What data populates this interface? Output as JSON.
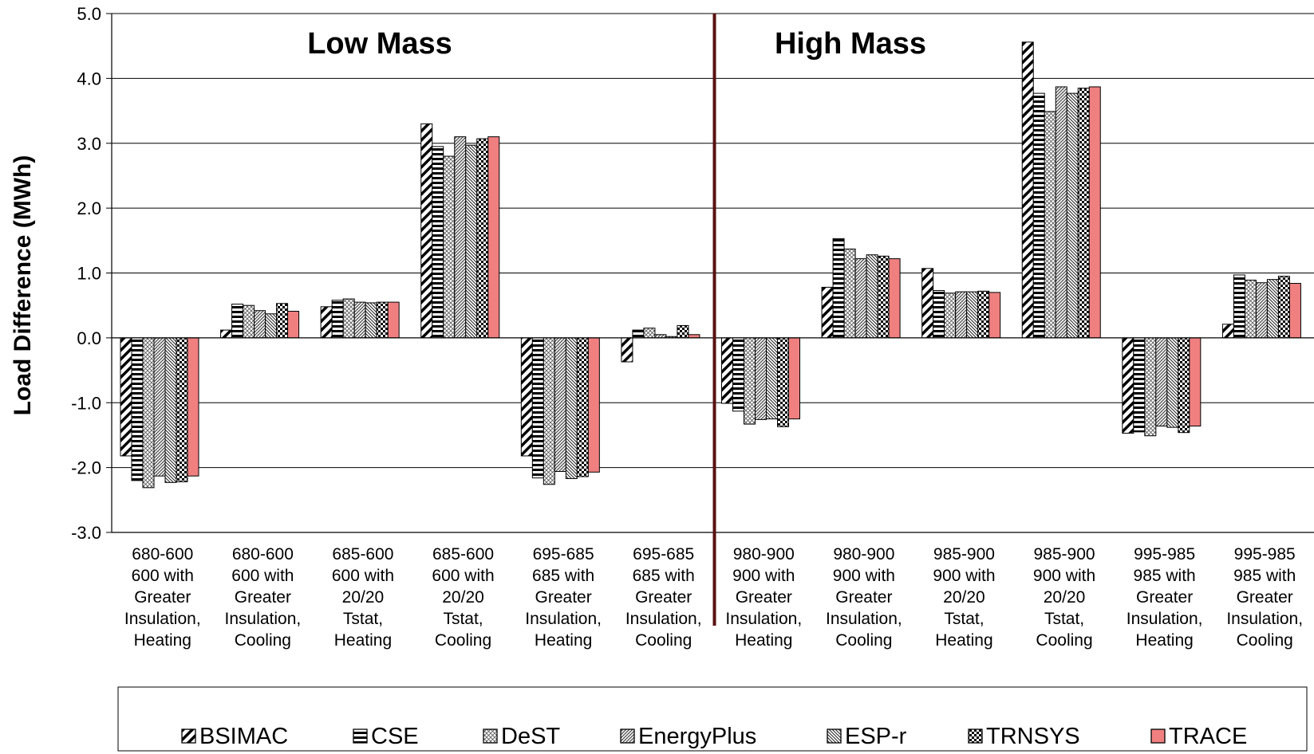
{
  "chart_data": {
    "type": "bar",
    "ylabel": "Load Difference (MWh)",
    "ylim": [
      -3.0,
      5.0
    ],
    "yticks": [
      "5.0",
      "4.0",
      "3.0",
      "2.0",
      "1.0",
      "0.0",
      "-1.0",
      "-2.0",
      "-3.0"
    ],
    "grid": "horizontal",
    "legend_position": "bottom",
    "group_labels": [
      "Low Mass",
      "High Mass"
    ],
    "categories": [
      [
        "680-600",
        "600 with",
        "Greater",
        "Insulation,",
        "Heating"
      ],
      [
        "680-600",
        "600 with",
        "Greater",
        "Insulation,",
        "Cooling"
      ],
      [
        "685-600",
        "600 with",
        "20/20",
        "Tstat,",
        "Heating"
      ],
      [
        "685-600",
        "600 with",
        "20/20",
        "Tstat,",
        "Cooling"
      ],
      [
        "695-685",
        "685 with",
        "Greater",
        "Insulation,",
        "Heating"
      ],
      [
        "695-685",
        "685 with",
        "Greater",
        "Insulation,",
        "Cooling"
      ],
      [
        "980-900",
        "900 with",
        "Greater",
        "Insulation,",
        "Heating"
      ],
      [
        "980-900",
        "900 with",
        "Greater",
        "Insulation,",
        "Cooling"
      ],
      [
        "985-900",
        "900 with",
        "20/20",
        "Tstat,",
        "Heating"
      ],
      [
        "985-900",
        "900 with",
        "20/20",
        "Tstat,",
        "Cooling"
      ],
      [
        "995-985",
        "985 with",
        "Greater",
        "Insulation,",
        "Heating"
      ],
      [
        "995-985",
        "985 with",
        "Greater",
        "Insulation,",
        "Cooling"
      ]
    ],
    "series": [
      {
        "name": "BSIMAC",
        "pattern": "diagonal-thick",
        "values": [
          -1.82,
          0.12,
          0.48,
          3.3,
          -1.82,
          -0.37,
          -1.01,
          0.78,
          1.07,
          4.56,
          -1.47,
          0.21
        ]
      },
      {
        "name": "CSE",
        "pattern": "horizontal-lines",
        "values": [
          -2.2,
          0.52,
          0.58,
          2.95,
          -2.16,
          0.12,
          -1.13,
          1.53,
          0.73,
          3.77,
          -1.45,
          0.97
        ]
      },
      {
        "name": "DeST",
        "pattern": "crosshatch-fine",
        "values": [
          -2.31,
          0.5,
          0.6,
          2.8,
          -2.26,
          0.15,
          -1.33,
          1.37,
          0.69,
          3.49,
          -1.51,
          0.89
        ]
      },
      {
        "name": "EnergyPlus",
        "pattern": "diagonal-dense",
        "values": [
          -2.13,
          0.42,
          0.55,
          3.1,
          -2.06,
          0.05,
          -1.26,
          1.22,
          0.71,
          3.87,
          -1.36,
          0.85
        ]
      },
      {
        "name": "ESP-r",
        "pattern": "diagonal-light",
        "values": [
          -2.23,
          0.37,
          0.54,
          2.97,
          -2.17,
          0.02,
          -1.25,
          1.28,
          0.71,
          3.77,
          -1.38,
          0.9
        ]
      },
      {
        "name": "TRNSYS",
        "pattern": "checker",
        "values": [
          -2.22,
          0.53,
          0.55,
          3.07,
          -2.14,
          0.19,
          -1.37,
          1.26,
          0.72,
          3.85,
          -1.46,
          0.95
        ]
      },
      {
        "name": "TRACE",
        "pattern": "solid",
        "color": "#f08080",
        "values": [
          -2.13,
          0.41,
          0.55,
          3.1,
          -2.07,
          0.05,
          -1.25,
          1.22,
          0.7,
          3.87,
          -1.36,
          0.84
        ]
      }
    ],
    "divider_color": "#5a1010"
  }
}
